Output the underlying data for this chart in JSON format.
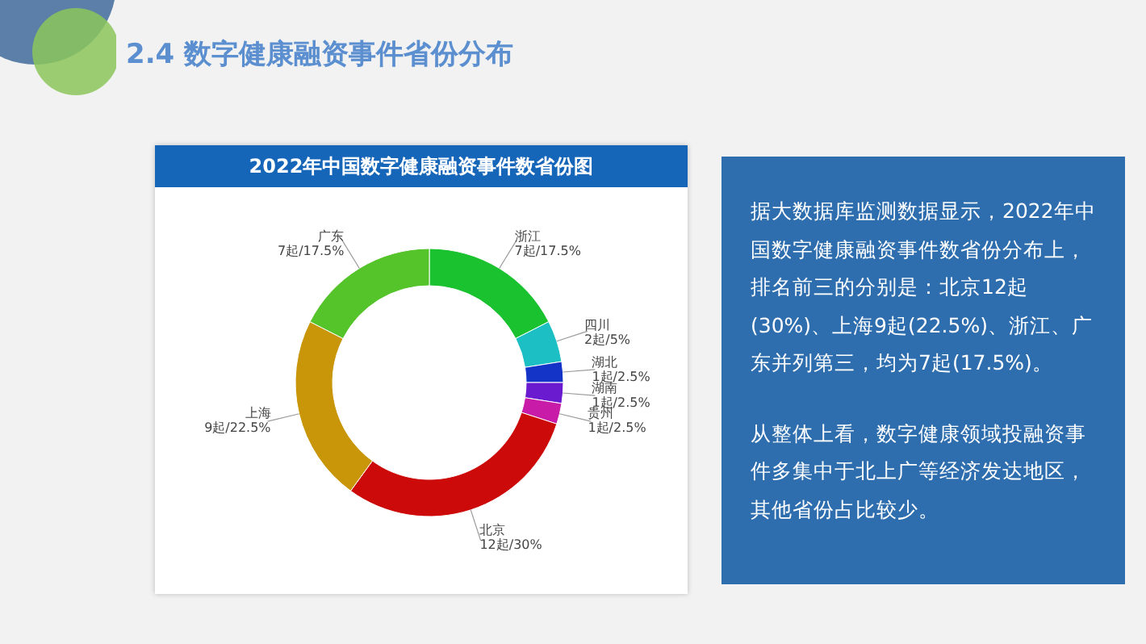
{
  "chart_data": {
    "type": "donut",
    "title": "2.4 数字健康融资事件省份分布",
    "subtitle": "2022年中国数字健康融资事件数省份图",
    "categories": [
      "浙江",
      "四川",
      "湖北",
      "湖南",
      "贵州",
      "北京",
      "上海",
      "广东"
    ],
    "values": [
      7,
      2,
      1,
      1,
      1,
      12,
      9,
      7
    ],
    "value_labels": [
      "7起/17.5%",
      "2起/5%",
      "1起/2.5%",
      "1起/2.5%",
      "1起/2.5%",
      "12起/30%",
      "9起/22.5%",
      "7起/17.5%"
    ],
    "colors": [
      "#19c22e",
      "#1bbfc4",
      "#1434c8",
      "#6a1bd0",
      "#c81ca8",
      "#cc0a0a",
      "#c9960a",
      "#54c42a"
    ],
    "legend": false,
    "annotations": [
      "据大数据库监测数据显示，2022年中国数字健康融资事件数省份分布上，排名前三的分别是：北京12起(30%)、上海9起(22.5%)、浙江、广东并列第三，均为7起(17.5%)。",
      "从整体上看，数字健康领域投融资事件多集中于北上广等经济发达地区，其他省份占比较少。"
    ]
  }
}
